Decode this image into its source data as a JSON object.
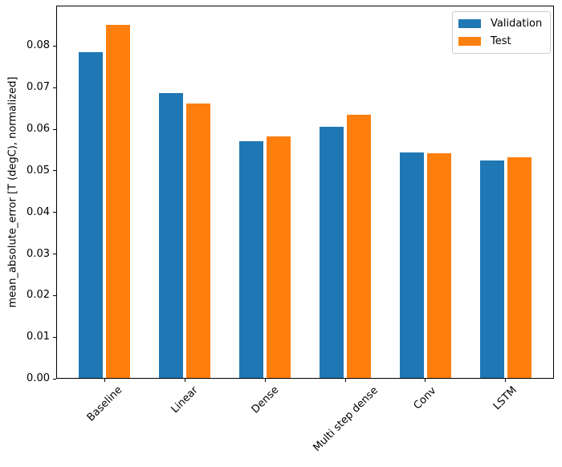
{
  "chart_data": {
    "type": "bar",
    "title": "",
    "categories": [
      "Baseline",
      "Linear",
      "Dense",
      "Multi step dense",
      "Conv",
      "LSTM"
    ],
    "series": [
      {
        "name": "Validation",
        "color": "#1f77b4",
        "values": [
          0.0785,
          0.0686,
          0.0571,
          0.0606,
          0.0545,
          0.0524
        ]
      },
      {
        "name": "Test",
        "color": "#ff7f0e",
        "values": [
          0.0851,
          0.0662,
          0.0582,
          0.0634,
          0.0543,
          0.0533
        ]
      }
    ],
    "xlabel": "",
    "ylabel": "mean_absolute_error [T (degC), normalized]",
    "ylim": [
      0,
      0.0897
    ],
    "yticks": [
      0,
      0.01,
      0.02,
      0.03,
      0.04,
      0.05,
      0.06,
      0.07,
      0.08
    ],
    "ytick_decimals": 2,
    "xtick_rotation_deg": 45,
    "grid": false,
    "background": "#ffffff",
    "axis_color": "#000000",
    "bar_width_units": 0.3,
    "bar_group_offset_units": 0.17,
    "legend": {
      "position": "upper right",
      "entries": [
        "Validation",
        "Test"
      ]
    }
  }
}
